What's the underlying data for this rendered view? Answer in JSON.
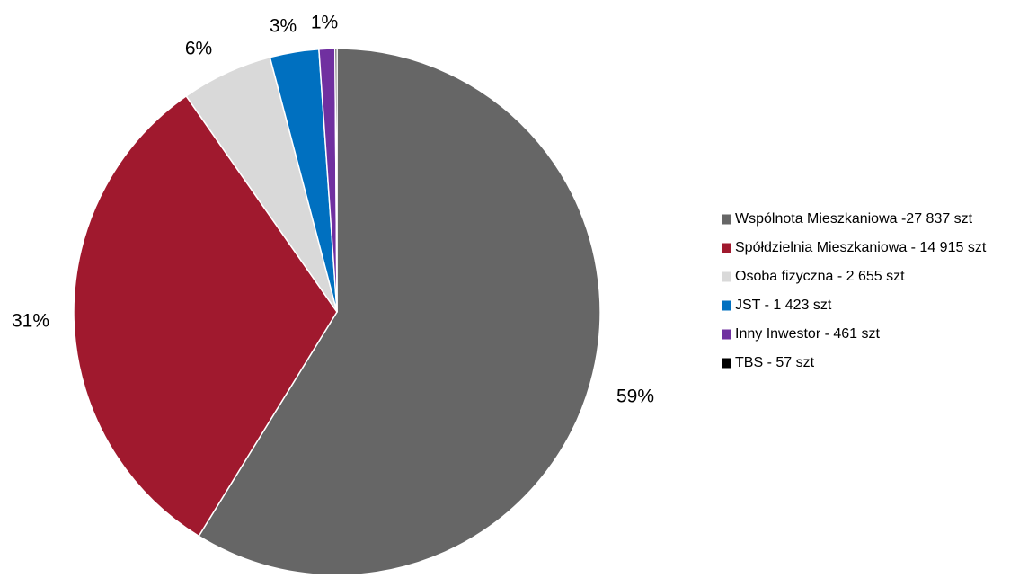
{
  "chart_data": {
    "type": "pie",
    "title": "",
    "slices": [
      {
        "name": "Wspólnota Mieszkaniowa -27 837 szt",
        "value": 27837,
        "percent_label": "59%",
        "color": "#666666"
      },
      {
        "name": "Spółdzielnia Mieszkaniowa - 14 915 szt",
        "value": 14915,
        "percent_label": "31%",
        "color": "#A0192E"
      },
      {
        "name": "Osoba fizyczna - 2 655 szt",
        "value": 2655,
        "percent_label": "6%",
        "color": "#D9D9D9"
      },
      {
        "name": "JST - 1 423 szt",
        "value": 1423,
        "percent_label": "3%",
        "color": "#0070C0"
      },
      {
        "name": "Inny Inwestor - 461 szt",
        "value": 461,
        "percent_label": "1%",
        "color": "#7030A0"
      },
      {
        "name": "TBS - 57 szt",
        "value": 57,
        "percent_label": "",
        "color": "#000000"
      }
    ],
    "start_angle_deg": 0,
    "direction": "clockwise",
    "legend_position": "right"
  }
}
